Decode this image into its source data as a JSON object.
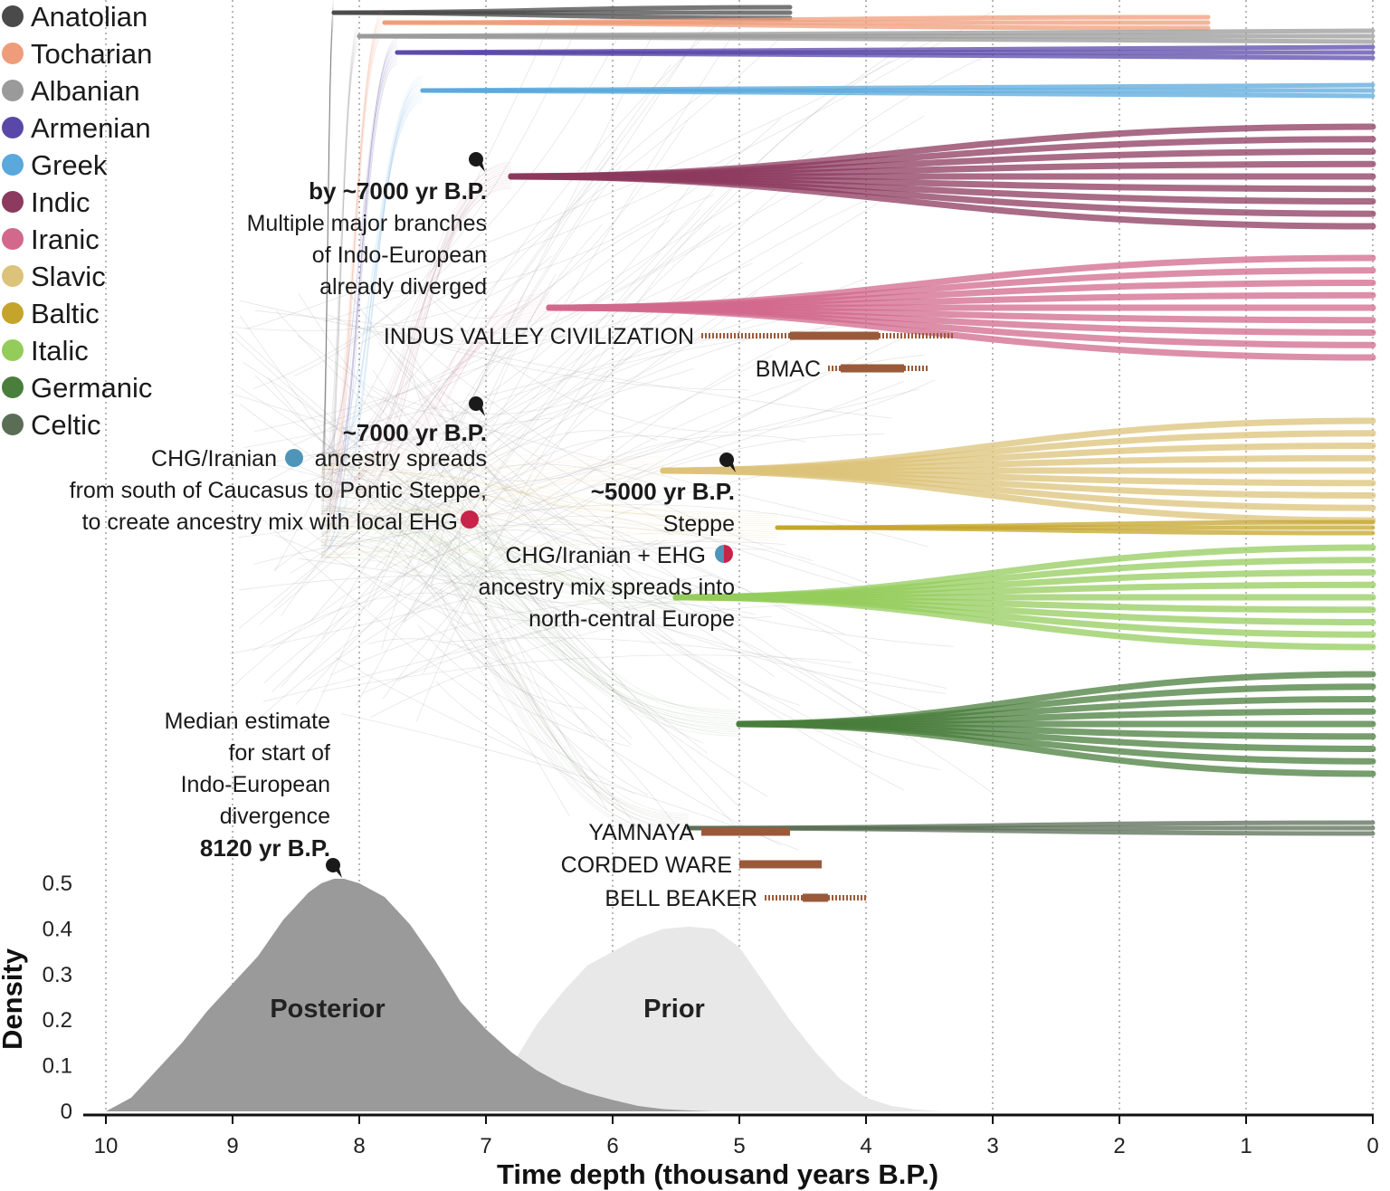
{
  "chart_data": {
    "type": "area",
    "xlabel": "Time depth (thousand years B.P.)",
    "ylabel": "Density",
    "xlim": [
      10,
      0
    ],
    "ylim": [
      0,
      0.5
    ],
    "x_ticks": [
      "10",
      "9",
      "8",
      "7",
      "6",
      "5",
      "4",
      "3",
      "2",
      "1",
      "0"
    ],
    "y_ticks": [
      "0",
      "0.1",
      "0.2",
      "0.3",
      "0.4",
      "0.5"
    ],
    "grid": "vertical dotted lines at each thousand years",
    "legend_placement": "top-left",
    "series": [
      {
        "name": "Posterior",
        "color": "#9a9a9a",
        "x": [
          10.0,
          9.8,
          9.6,
          9.4,
          9.2,
          9.0,
          8.8,
          8.6,
          8.4,
          8.3,
          8.2,
          8.12,
          8.0,
          7.8,
          7.6,
          7.4,
          7.2,
          7.0,
          6.8,
          6.6,
          6.4,
          6.2,
          6.0,
          5.8,
          5.6,
          5.4,
          5.2
        ],
        "values": [
          0.0,
          0.03,
          0.09,
          0.15,
          0.22,
          0.28,
          0.34,
          0.42,
          0.48,
          0.5,
          0.51,
          0.51,
          0.5,
          0.47,
          0.41,
          0.33,
          0.24,
          0.18,
          0.13,
          0.09,
          0.06,
          0.04,
          0.025,
          0.012,
          0.005,
          0.002,
          0.0
        ]
      },
      {
        "name": "Prior",
        "color": "#e8e8e8",
        "x": [
          7.0,
          6.8,
          6.6,
          6.4,
          6.2,
          6.0,
          5.8,
          5.6,
          5.4,
          5.2,
          5.0,
          4.8,
          4.6,
          4.4,
          4.2,
          4.0,
          3.8,
          3.6,
          3.4
        ],
        "values": [
          0.02,
          0.1,
          0.19,
          0.26,
          0.32,
          0.35,
          0.38,
          0.4,
          0.405,
          0.4,
          0.36,
          0.28,
          0.2,
          0.13,
          0.07,
          0.03,
          0.012,
          0.004,
          0.0
        ]
      }
    ],
    "legend": [
      {
        "label": "Anatolian",
        "color": "#4a4a4a"
      },
      {
        "label": "Tocharian",
        "color": "#ef9c7a"
      },
      {
        "label": "Albanian",
        "color": "#9a9a9a"
      },
      {
        "label": "Armenian",
        "color": "#5a48a8"
      },
      {
        "label": "Greek",
        "color": "#5aa8dc"
      },
      {
        "label": "Indic",
        "color": "#8c3a5e"
      },
      {
        "label": "Iranic",
        "color": "#d2688c"
      },
      {
        "label": "Slavic",
        "color": "#dcc37a"
      },
      {
        "label": "Baltic",
        "color": "#c4a42a"
      },
      {
        "label": "Italic",
        "color": "#94cc5c"
      },
      {
        "label": "Germanic",
        "color": "#4a7e3c"
      },
      {
        "label": "Celtic",
        "color": "#5a6e56"
      }
    ],
    "branches": [
      {
        "group": "Anatolian",
        "start": 8.2,
        "end": 4.6
      },
      {
        "group": "Tocharian",
        "start": 7.8,
        "end": 1.3
      },
      {
        "group": "Albanian",
        "start": 8.0,
        "end": 0.0
      },
      {
        "group": "Armenian",
        "start": 7.7,
        "end": 0.0
      },
      {
        "group": "Greek",
        "start": 7.5,
        "end": 0.0
      },
      {
        "group": "Indic",
        "start": 6.8,
        "end": 0.0
      },
      {
        "group": "Iranic",
        "start": 6.5,
        "end": 0.0
      },
      {
        "group": "Slavic",
        "start": 5.6,
        "end": 0.0
      },
      {
        "group": "Baltic",
        "start": 4.7,
        "end": 0.0
      },
      {
        "group": "Italic",
        "start": 5.5,
        "end": 0.0
      },
      {
        "group": "Germanic",
        "start": 5.0,
        "end": 0.0
      },
      {
        "group": "Celtic",
        "start": 5.4,
        "end": 0.0
      }
    ],
    "cultures": [
      {
        "name": "INDUS VALLEY CIVILIZATION",
        "start_uncertain": 5.3,
        "start": 4.6,
        "end": 3.9,
        "end_uncertain": 3.3
      },
      {
        "name": "BMAC",
        "start_uncertain": 4.3,
        "start": 4.2,
        "end": 3.7,
        "end_uncertain": 3.5
      },
      {
        "name": "YAMNAYA",
        "start": 5.3,
        "end": 4.6
      },
      {
        "name": "CORDED WARE",
        "start": 5.0,
        "end": 4.35
      },
      {
        "name": "BELL BEAKER",
        "start_uncertain": 4.8,
        "start": 4.5,
        "end": 4.3,
        "end_uncertain": 4.0
      }
    ],
    "annotations": [
      {
        "lines": [
          "by ~7000 yr B.P.",
          "Multiple major branches",
          "of Indo-European",
          "already diverged"
        ]
      },
      {
        "lines": [
          "~7000 yr B.P.",
          "CHG/Iranian",
          "ancestry spreads",
          "from south of Caucasus to Pontic Steppe,",
          "to create ancestry mix with local EHG"
        ]
      },
      {
        "lines": [
          "~5000 yr B.P.",
          "Steppe",
          "CHG/Iranian + EHG",
          "ancestry mix spreads into",
          "north-central Europe"
        ]
      },
      {
        "lines": [
          "Median estimate",
          "for start of",
          "Indo-European",
          "divergence",
          "8120 yr B.P."
        ]
      }
    ],
    "colors": {
      "culture_bar": "#9a5a3a",
      "chg": "#4f95b9",
      "ehg": "#c8234a",
      "pin": "#1a1a1a"
    }
  }
}
